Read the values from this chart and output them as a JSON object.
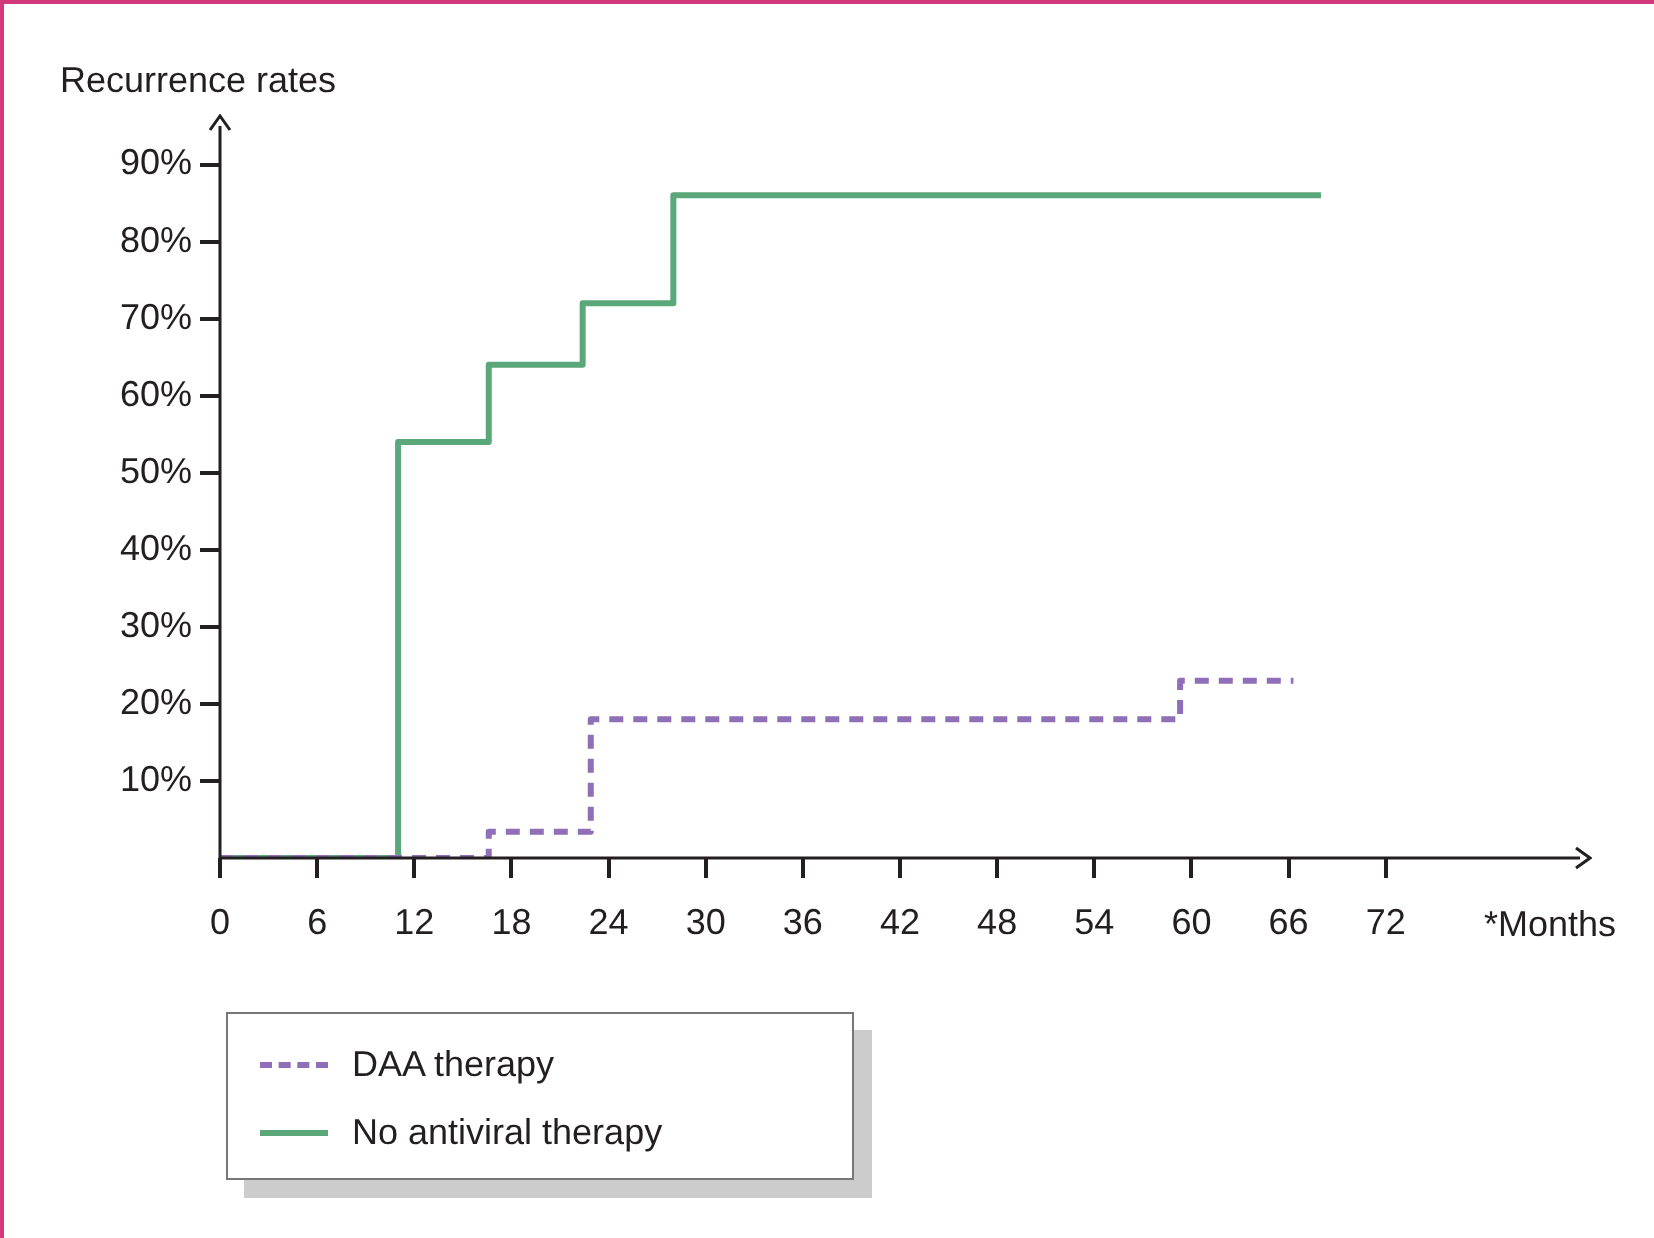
{
  "chart_data": {
    "type": "step",
    "xlabel": "*Months",
    "ylabel": "Recurrence rates",
    "xlim": [
      0,
      84
    ],
    "xticks": [
      0,
      6,
      12,
      18,
      24,
      30,
      36,
      42,
      48,
      54,
      60,
      66,
      72
    ],
    "ylim": [
      0,
      95
    ],
    "yticks": [
      {
        "value": 10,
        "label": "10%"
      },
      {
        "value": 20,
        "label": "20%"
      },
      {
        "value": 30,
        "label": "30%"
      },
      {
        "value": 40,
        "label": "40%"
      },
      {
        "value": 50,
        "label": "50%"
      },
      {
        "value": 60,
        "label": "60%"
      },
      {
        "value": 70,
        "label": "70%"
      },
      {
        "value": 80,
        "label": "80%"
      },
      {
        "value": 90,
        "label": "90%"
      }
    ],
    "marker": "none",
    "legend": "bottom left",
    "series": [
      {
        "name": "DAA therapy",
        "color": "#8e6fb8",
        "line_style": "dashed",
        "x": [
          0,
          16.6,
          22.9,
          59.3,
          66.3
        ],
        "values": [
          0,
          3.4,
          18,
          23,
          23
        ]
      },
      {
        "name": "No antiviral therapy",
        "color": "#5aa77a",
        "line_style": "solid",
        "x": [
          0,
          11,
          16.6,
          22.4,
          28,
          68
        ],
        "values": [
          0,
          54,
          64,
          72,
          86,
          86
        ]
      }
    ]
  }
}
